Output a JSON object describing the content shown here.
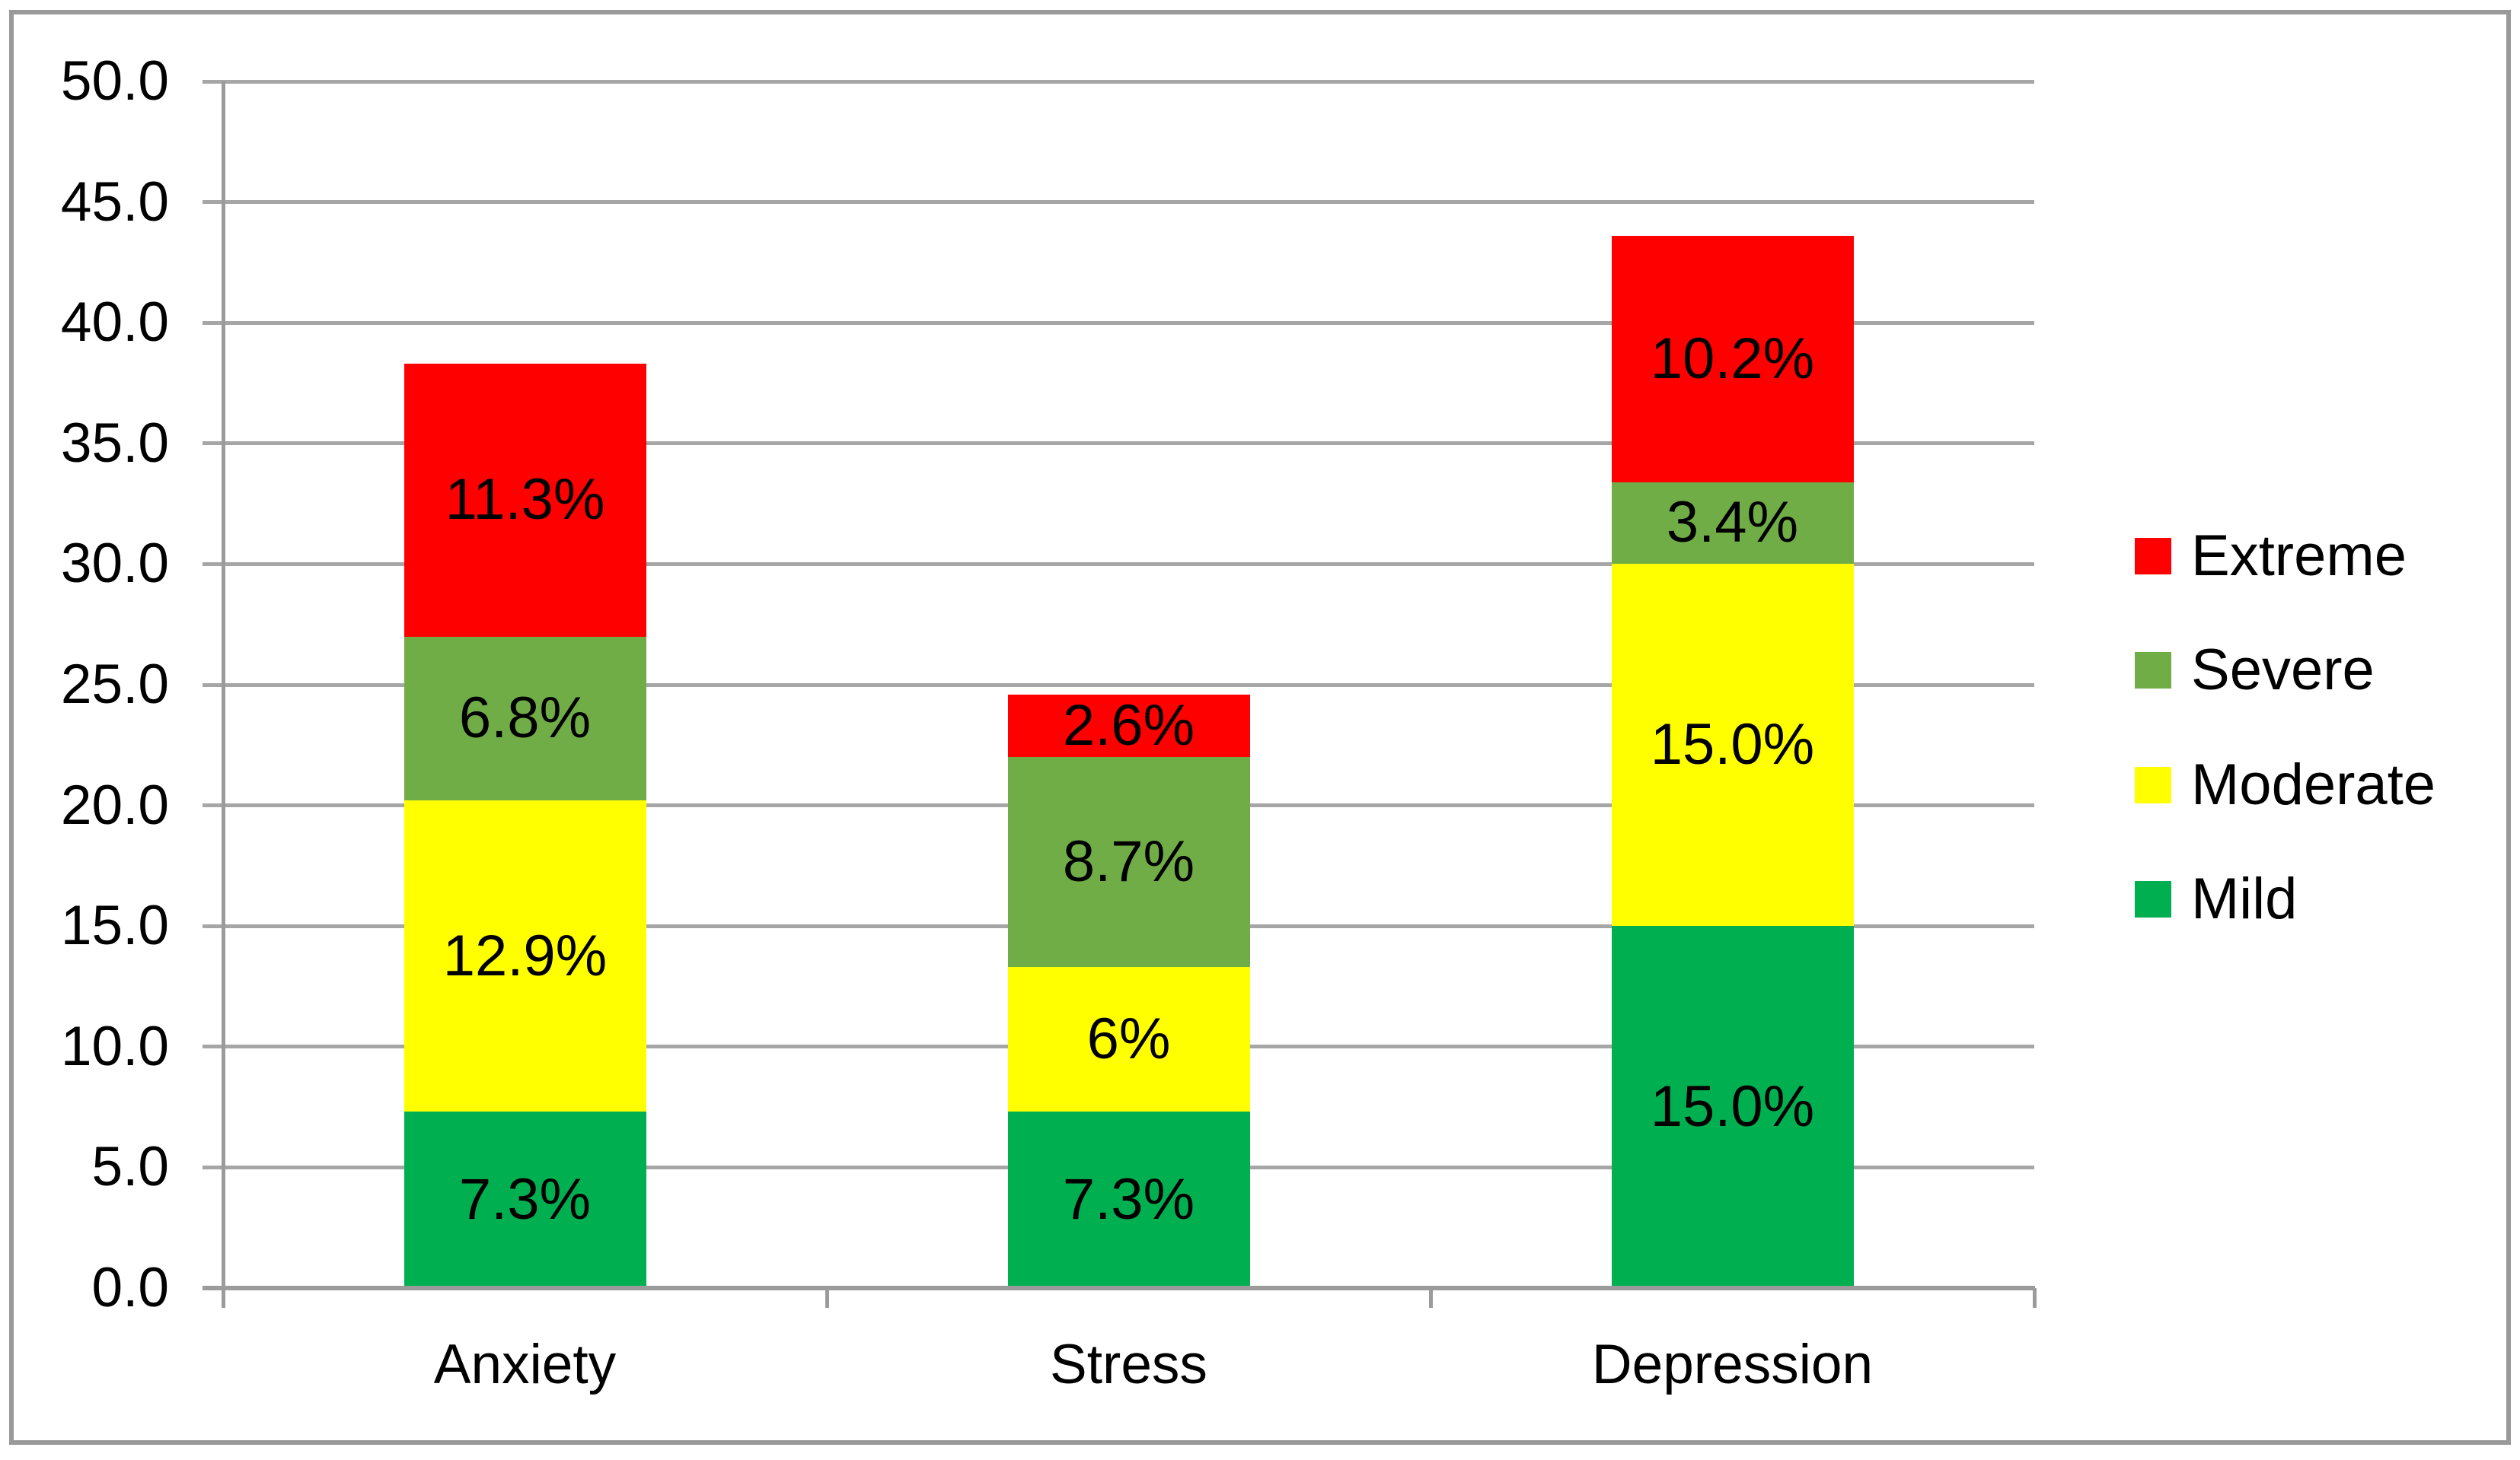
{
  "chart_data": {
    "type": "bar",
    "stacked": true,
    "title": "",
    "xlabel": "",
    "ylabel": "",
    "categories": [
      "Anxiety",
      "Stress",
      "Depression"
    ],
    "series": [
      {
        "name": "Mild",
        "color": "#00B050",
        "values": [
          7.3,
          7.3,
          15.0
        ],
        "labels": [
          "7.3%",
          "7.3%",
          "15.0%"
        ]
      },
      {
        "name": "Moderate",
        "color": "#FFFF00",
        "values": [
          12.9,
          6.0,
          15.0
        ],
        "labels": [
          "12.9%",
          "6%",
          "15.0%"
        ]
      },
      {
        "name": "Severe",
        "color": "#70AD47",
        "values": [
          6.8,
          8.7,
          3.4
        ],
        "labels": [
          "6.8%",
          "8.7%",
          "3.4%"
        ]
      },
      {
        "name": "Extreme",
        "color": "#FF0000",
        "values": [
          11.3,
          2.6,
          10.2
        ],
        "labels": [
          "11.3%",
          "2.6%",
          "10.2%"
        ]
      }
    ],
    "totals": [
      38.3,
      24.6,
      43.6
    ],
    "y_axis": {
      "min": 0,
      "max": 50,
      "step": 5,
      "tick_labels": [
        "50.0",
        "45.0",
        "40.0",
        "35.0",
        "30.0",
        "25.0",
        "20.0",
        "15.0",
        "10.0",
        "5.0",
        "0.0"
      ]
    },
    "grid": true,
    "legend": {
      "position": "right",
      "order": [
        "Extreme",
        "Severe",
        "Moderate",
        "Mild"
      ]
    },
    "colors": {
      "grid": "#A6A6A6",
      "axis": "#9B9B9B",
      "frame_border": "#999999",
      "background": "#FFFFFF",
      "text": "#000000"
    }
  }
}
